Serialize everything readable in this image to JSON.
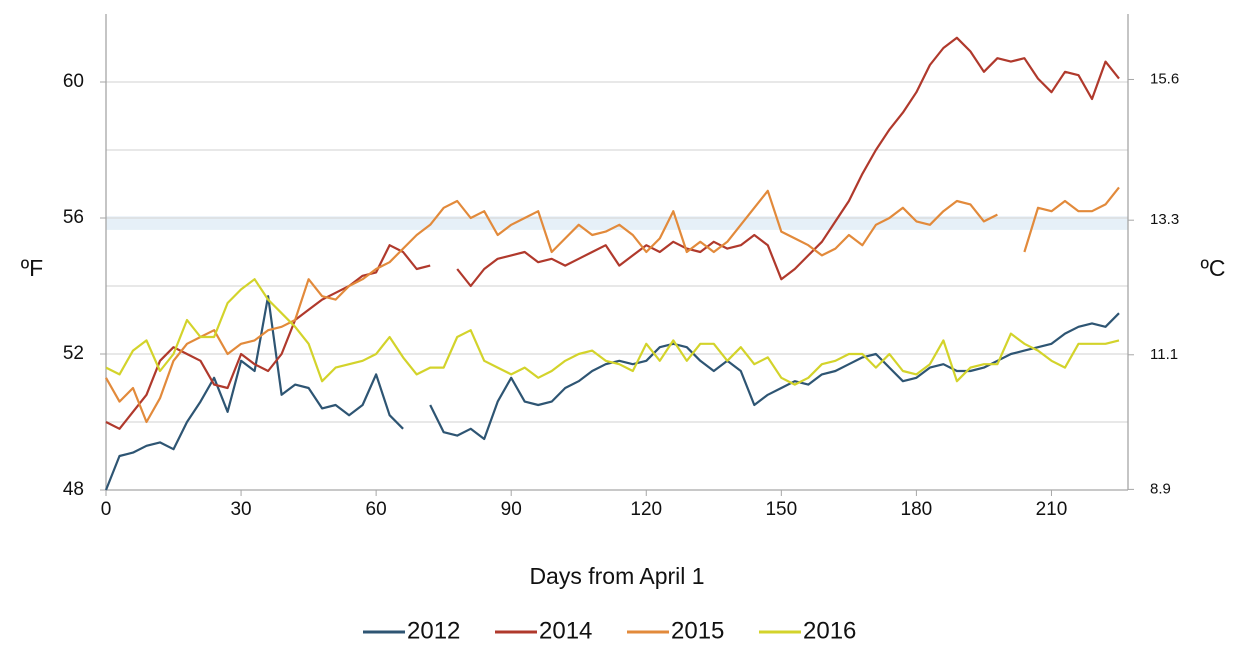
{
  "chart_data": {
    "type": "line",
    "x_label": "Days from April 1",
    "y_label": "ºF",
    "y2_label": "ºC",
    "x": [
      0,
      3,
      6,
      9,
      12,
      15,
      18,
      21,
      24,
      27,
      30,
      33,
      36,
      39,
      42,
      45,
      48,
      51,
      54,
      57,
      60,
      63,
      66,
      69,
      72,
      75,
      78,
      81,
      84,
      87,
      90,
      93,
      96,
      99,
      102,
      105,
      108,
      111,
      114,
      117,
      120,
      123,
      126,
      129,
      132,
      135,
      138,
      141,
      144,
      147,
      150,
      153,
      156,
      159,
      162,
      165,
      168,
      171,
      174,
      177,
      180,
      183,
      186,
      189,
      192,
      195,
      198,
      201,
      204,
      207,
      210,
      213,
      216,
      219,
      222,
      225
    ],
    "xlim": [
      0,
      227
    ],
    "xticks": [
      0,
      30,
      60,
      90,
      120,
      150,
      180,
      210
    ],
    "ylim": [
      48,
      62
    ],
    "yticks": [
      48,
      52,
      56,
      60
    ],
    "grid_lines": [
      50,
      52,
      54,
      56,
      58,
      60
    ],
    "highlight_band": [
      55.65,
      56.05
    ],
    "highlight_color": "#e6f0f8",
    "y2lim": [
      8.89,
      16.67
    ],
    "y2ticks": [
      8.9,
      11.1,
      13.3,
      15.6
    ],
    "series": [
      {
        "name": "2012",
        "color": "#2e5573",
        "values": [
          48,
          49,
          49.1,
          49.3,
          49.4,
          49.2,
          50,
          50.6,
          51.3,
          50.3,
          51.8,
          51.5,
          53.7,
          50.8,
          51.1,
          51,
          50.4,
          50.5,
          50.2,
          50.5,
          51.4,
          50.2,
          49.8,
          null,
          50.5,
          49.7,
          49.6,
          49.8,
          49.5,
          50.6,
          51.3,
          50.6,
          50.5,
          50.6,
          51,
          51.2,
          51.5,
          51.7,
          51.8,
          51.7,
          51.8,
          52.2,
          52.3,
          52.2,
          51.8,
          51.5,
          51.8,
          51.5,
          50.5,
          50.8,
          51,
          51.2,
          51.1,
          51.4,
          51.5,
          51.7,
          51.9,
          52,
          51.6,
          51.2,
          51.3,
          51.6,
          51.7,
          51.5,
          51.5,
          51.6,
          51.8,
          52,
          52.1,
          52.2,
          52.3,
          52.6,
          52.8,
          52.9,
          52.8,
          53.2
        ]
      },
      {
        "name": "2014",
        "color": "#b0392c",
        "values": [
          50,
          49.8,
          50.3,
          50.8,
          51.8,
          52.2,
          52,
          51.8,
          51.1,
          51,
          52,
          51.7,
          51.5,
          52,
          53,
          53.3,
          53.6,
          53.8,
          54,
          54.3,
          54.4,
          55.2,
          55,
          54.5,
          54.6,
          null,
          54.5,
          54,
          54.5,
          54.8,
          54.9,
          55,
          54.7,
          54.8,
          54.6,
          54.8,
          55,
          55.2,
          54.6,
          54.9,
          55.2,
          55,
          55.3,
          55.1,
          55,
          55.3,
          55.1,
          55.2,
          55.5,
          55.2,
          54.2,
          54.5,
          54.9,
          55.3,
          55.9,
          56.5,
          57.3,
          58,
          58.6,
          59.1,
          59.7,
          60.5,
          61,
          61.3,
          60.9,
          60.3,
          60.7,
          60.6,
          60.7,
          60.1,
          59.7,
          60.3,
          60.2,
          59.5,
          60.6,
          60.1
        ]
      },
      {
        "name": "2015",
        "color": "#e28a3b",
        "values": [
          51.3,
          50.6,
          51,
          50,
          50.7,
          51.8,
          52.3,
          52.5,
          52.7,
          52,
          52.3,
          52.4,
          52.7,
          52.8,
          53,
          54.2,
          53.7,
          53.6,
          54,
          54.2,
          54.5,
          54.7,
          55.1,
          55.5,
          55.8,
          56.3,
          56.5,
          56,
          56.2,
          55.5,
          55.8,
          56,
          56.2,
          55,
          55.4,
          55.8,
          55.5,
          55.6,
          55.8,
          55.5,
          55,
          55.4,
          56.2,
          55,
          55.3,
          55,
          55.3,
          55.8,
          56.3,
          56.8,
          55.6,
          55.4,
          55.2,
          54.9,
          55.1,
          55.5,
          55.2,
          55.8,
          56,
          56.3,
          55.9,
          55.8,
          56.2,
          56.5,
          56.4,
          55.9,
          56.1,
          null,
          55,
          56.3,
          56.2,
          56.5,
          56.2,
          56.2,
          56.4,
          56.9
        ]
      },
      {
        "name": "2016",
        "color": "#d3d32b",
        "values": [
          51.6,
          51.4,
          52.1,
          52.4,
          51.5,
          52,
          53,
          52.5,
          52.5,
          53.5,
          53.9,
          54.2,
          53.6,
          53.2,
          52.8,
          52.3,
          51.2,
          51.6,
          51.7,
          51.8,
          52,
          52.5,
          51.9,
          51.4,
          51.6,
          51.6,
          52.5,
          52.7,
          51.8,
          51.6,
          51.4,
          51.6,
          51.3,
          51.5,
          51.8,
          52,
          52.1,
          51.8,
          51.7,
          51.5,
          52.3,
          51.8,
          52.4,
          51.8,
          52.3,
          52.3,
          51.8,
          52.2,
          51.7,
          51.9,
          51.3,
          51.1,
          51.3,
          51.7,
          51.8,
          52,
          52,
          51.6,
          52,
          51.5,
          51.4,
          51.7,
          52.4,
          51.2,
          51.6,
          51.7,
          51.7,
          52.6,
          52.3,
          52.1,
          51.8,
          51.6,
          52.3,
          52.3,
          52.3,
          52.4
        ]
      }
    ]
  }
}
